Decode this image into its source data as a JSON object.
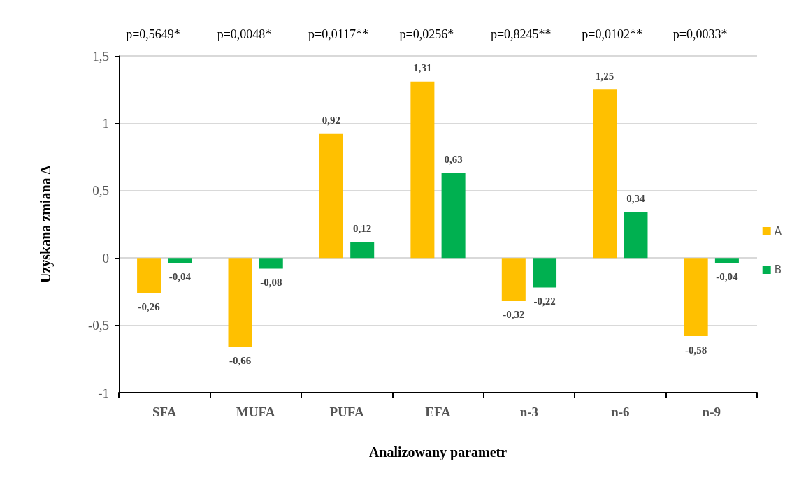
{
  "chart_data": {
    "type": "bar",
    "xlabel": "Analizowany parametr",
    "ylabel": "Uzyskana zmiana Δ",
    "categories": [
      "SFA",
      "MUFA",
      "PUFA",
      "EFA",
      "n-3",
      "n-6",
      "n-9"
    ],
    "series": [
      {
        "name": "A",
        "color": "#ffc000",
        "values": [
          -0.26,
          -0.66,
          0.92,
          1.31,
          -0.32,
          1.25,
          -0.58
        ],
        "value_labels": [
          "-0,26",
          "-0,66",
          "0,92",
          "1,31",
          "-0,32",
          "1,25",
          "-0,58"
        ]
      },
      {
        "name": "B",
        "color": "#00b050",
        "values": [
          -0.04,
          -0.08,
          0.12,
          0.63,
          -0.22,
          0.34,
          -0.04
        ],
        "value_labels": [
          "-0,04",
          "-0,08",
          "0,12",
          "0,63",
          "-0,22",
          "0,34",
          "-0,04"
        ]
      }
    ],
    "ylim": [
      -1,
      1.5
    ],
    "yticks": [
      {
        "value": -1,
        "label": "-1"
      },
      {
        "value": -0.5,
        "label": "-0,5"
      },
      {
        "value": 0,
        "label": "0"
      },
      {
        "value": 0.5,
        "label": "0,5"
      },
      {
        "value": 1,
        "label": "1"
      },
      {
        "value": 1.5,
        "label": "1,5"
      }
    ],
    "grid": "y",
    "legend": "right",
    "annotations": [
      "p=0,5649*",
      "p=0,0048*",
      "p=0,0117**",
      "p=0,0256*",
      "p=0,8245**",
      "p=0,0102**",
      "p=0,0033*"
    ]
  }
}
